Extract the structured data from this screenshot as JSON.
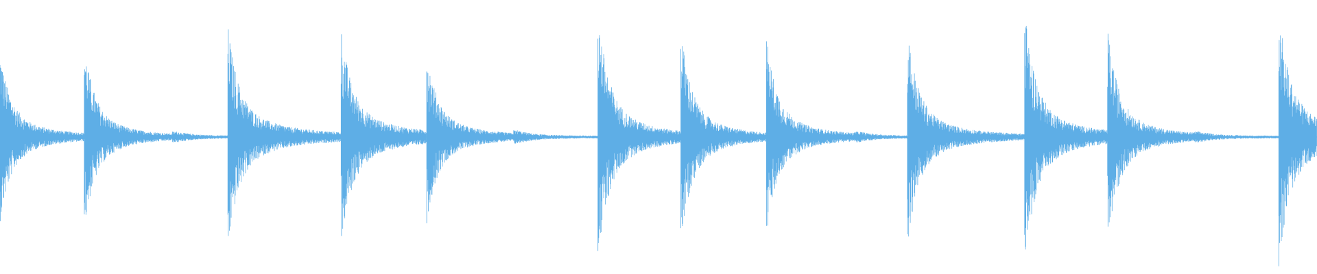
{
  "chart_data": {
    "type": "waveform",
    "title": "",
    "xlabel": "",
    "ylabel": "",
    "axes_visible": false,
    "grid": false,
    "legend": "none",
    "color": "#5eaee6",
    "background": "#ffffff",
    "ylim": [
      -1,
      1
    ],
    "xlim": [
      0,
      1
    ],
    "events": [
      {
        "t": 0.0,
        "peak": 0.63,
        "tail": 0.03
      },
      {
        "t": 0.064,
        "peak": 0.68,
        "tail": 0.02
      },
      {
        "t": 0.131,
        "peak": 0.04,
        "tail": 0.02
      },
      {
        "t": 0.173,
        "peak": 0.82,
        "tail": 0.07
      },
      {
        "t": 0.259,
        "peak": 0.8,
        "tail": 0.07
      },
      {
        "t": 0.324,
        "peak": 0.63,
        "tail": 0.03
      },
      {
        "t": 0.39,
        "peak": 0.05,
        "tail": 0.02
      },
      {
        "t": 0.454,
        "peak": 0.94,
        "tail": 0.05
      },
      {
        "t": 0.517,
        "peak": 0.79,
        "tail": 0.03
      },
      {
        "t": 0.582,
        "peak": 0.73,
        "tail": 0.03
      },
      {
        "t": 0.649,
        "peak": 0.04,
        "tail": 0.02
      },
      {
        "t": 0.689,
        "peak": 0.8,
        "tail": 0.04
      },
      {
        "t": 0.778,
        "peak": 0.94,
        "tail": 0.06
      },
      {
        "t": 0.841,
        "peak": 0.8,
        "tail": 0.03
      },
      {
        "t": 0.907,
        "peak": 0.04,
        "tail": 0.02
      },
      {
        "t": 0.971,
        "peak": 0.95,
        "tail": 0.08
      }
    ]
  }
}
